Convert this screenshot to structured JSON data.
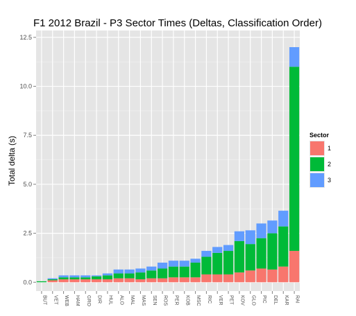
{
  "chart_data": {
    "type": "bar",
    "stacked": true,
    "title": "F1  2012 Brazil - P3 Sector Times (Deltas, Classification Order)",
    "xlabel": "",
    "ylabel": "Total delta (s)",
    "ylim": [
      0,
      12.5
    ],
    "yticks": [
      0,
      2.5,
      5,
      7.5,
      10,
      12.5
    ],
    "ytick_labels": [
      "0.0",
      "2.5",
      "5.0",
      "7.5",
      "10.0",
      "12.5"
    ],
    "grid": true,
    "legend_position": "right",
    "legend_title": "Sector",
    "categories": [
      "BUT",
      "VET",
      "WEB",
      "HAM",
      "GRO",
      "DIR",
      "HUL",
      "ALO",
      "MAL",
      "MAS",
      "SEN",
      "ROS",
      "PER",
      "KOB",
      "MSC",
      "RIC",
      "VER",
      "PET",
      "KOV",
      "GLO",
      "PIC",
      "DEL",
      "KAR",
      "RAI"
    ],
    "series": [
      {
        "name": "1",
        "color": "#f8766d",
        "values": [
          0.0,
          0.1,
          0.15,
          0.15,
          0.15,
          0.15,
          0.15,
          0.2,
          0.2,
          0.15,
          0.2,
          0.2,
          0.25,
          0.25,
          0.25,
          0.4,
          0.4,
          0.4,
          0.5,
          0.6,
          0.7,
          0.65,
          0.8,
          1.6
        ]
      },
      {
        "name": "2",
        "color": "#00ba38",
        "values": [
          0.05,
          0.05,
          0.1,
          0.1,
          0.1,
          0.15,
          0.2,
          0.25,
          0.25,
          0.35,
          0.4,
          0.5,
          0.55,
          0.55,
          0.75,
          0.9,
          1.1,
          1.2,
          1.6,
          1.35,
          1.55,
          1.85,
          2.05,
          9.4
        ]
      },
      {
        "name": "3",
        "color": "#619cff",
        "values": [
          0.0,
          0.05,
          0.1,
          0.1,
          0.1,
          0.05,
          0.1,
          0.2,
          0.2,
          0.2,
          0.2,
          0.3,
          0.3,
          0.3,
          0.2,
          0.3,
          0.3,
          0.3,
          0.5,
          0.7,
          0.75,
          0.65,
          0.8,
          1.0
        ]
      }
    ]
  }
}
